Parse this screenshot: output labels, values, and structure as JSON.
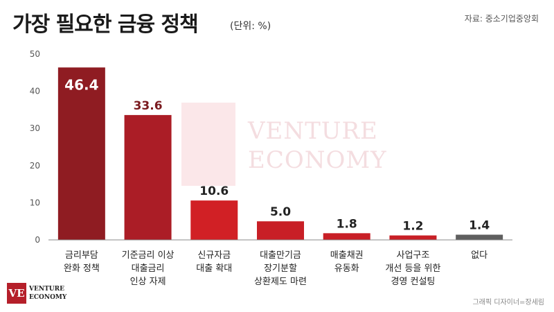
{
  "header": {
    "title": "가장 필요한 금융 정책",
    "unit": "(단위: %)",
    "source": "자료: 중소기업중앙회"
  },
  "footer": {
    "credit": "그래픽 디자이너=장세림",
    "logo_mark": "VE",
    "logo_line1": "VENTURE",
    "logo_line2": "ECONOMY"
  },
  "watermark": {
    "line1": "VENTURE",
    "line2": "ECONOMY"
  },
  "chart_data": {
    "type": "bar",
    "categories": [
      [
        "금리부담",
        "완화 정책"
      ],
      [
        "기준금리 이상",
        "대출금리",
        "인상 자제"
      ],
      [
        "신규자금",
        "대출 확대"
      ],
      [
        "대출만기금",
        "장기분할",
        "상환제도 마련"
      ],
      [
        "매출채권",
        "유동화"
      ],
      [
        "사업구조",
        "개선 등을 위한",
        "경영 컨설팅"
      ],
      [
        "없다"
      ]
    ],
    "values": [
      46.4,
      33.6,
      10.6,
      5.0,
      1.8,
      1.2,
      1.4
    ],
    "value_labels": [
      "46.4",
      "33.6",
      "10.6",
      "5.0",
      "1.8",
      "1.2",
      "1.4"
    ],
    "colors": [
      "#8f1c22",
      "#ab1d26",
      "#d12025",
      "#c81f26",
      "#c81f26",
      "#c81f26",
      "#5f5f5f"
    ],
    "label_colors": [
      "#ffffff",
      "#7a1a1f",
      "#222222",
      "#222222",
      "#222222",
      "#222222",
      "#222222"
    ],
    "yticks": [
      0,
      10,
      20,
      30,
      40,
      50
    ],
    "ylim": [
      0,
      50
    ],
    "grid": false,
    "legend": "none"
  }
}
